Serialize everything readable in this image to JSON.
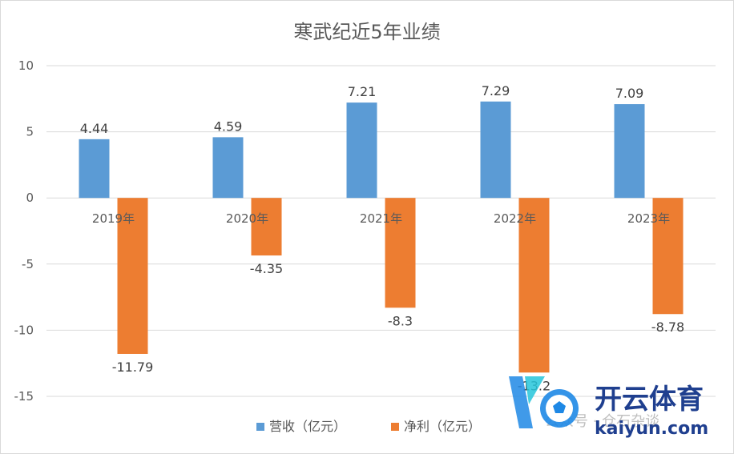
{
  "chart_data": {
    "type": "bar",
    "title": "寒武纪近5年业绩",
    "categories": [
      "2019年",
      "2020年",
      "2021年",
      "2022年",
      "2023年"
    ],
    "series": [
      {
        "name": "营收（亿元）",
        "color": "#5b9bd5",
        "values": [
          4.44,
          4.59,
          7.21,
          7.29,
          7.09
        ]
      },
      {
        "name": "净利（亿元）",
        "color": "#ed7d31",
        "values": [
          -11.79,
          -4.35,
          -8.3,
          -13.2,
          -8.78
        ]
      }
    ],
    "data_labels": {
      "series0": [
        "4.44",
        "4.59",
        "7.21",
        "7.29",
        "7.09"
      ],
      "series1": [
        "-11.79",
        "-4.35",
        "-8.3",
        "-13.2",
        "-8.78"
      ]
    },
    "ylim": [
      -15,
      10
    ],
    "yticks": [
      10,
      5,
      0,
      -5,
      -10,
      -15
    ],
    "grid": true,
    "legend": "bottom"
  },
  "watermark": {
    "logo_icon": "soccer-ball-icon",
    "brand_name": "开云体育",
    "brand_url": "kaiyun.com",
    "faint_text": "公众号 · 仓石杂谈"
  }
}
